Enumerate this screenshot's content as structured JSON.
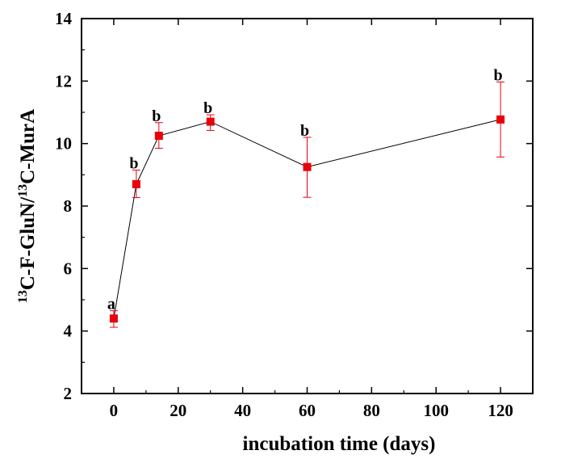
{
  "chart_data": {
    "type": "scatter",
    "x": [
      0,
      7,
      14,
      30,
      60,
      120
    ],
    "y": [
      4.4,
      8.7,
      10.25,
      10.7,
      9.25,
      10.77
    ],
    "y_err_low": [
      4.12,
      8.27,
      9.85,
      10.42,
      8.28,
      9.57
    ],
    "y_err_high": [
      4.65,
      9.15,
      10.67,
      10.92,
      10.2,
      11.97
    ],
    "significance_labels": [
      "a",
      "b",
      "b",
      "b",
      "b",
      "b"
    ],
    "xlabel": "incubation time (days)",
    "ylabel_parts": {
      "sup1": "13",
      "mid": "C-F-GluN/",
      "sup2": "13",
      "end": "C-MurA"
    },
    "xlim": [
      -10,
      130
    ],
    "ylim": [
      2,
      14
    ],
    "xticks": [
      0,
      20,
      40,
      60,
      80,
      100,
      120
    ],
    "yticks": [
      2,
      4,
      6,
      8,
      10,
      12,
      14
    ],
    "grid": false,
    "line": true,
    "marker": "square",
    "colors": {
      "marker": "#e8000b",
      "error_bar": "#e8000b",
      "line": "#000000",
      "axis": "#000000"
    }
  }
}
